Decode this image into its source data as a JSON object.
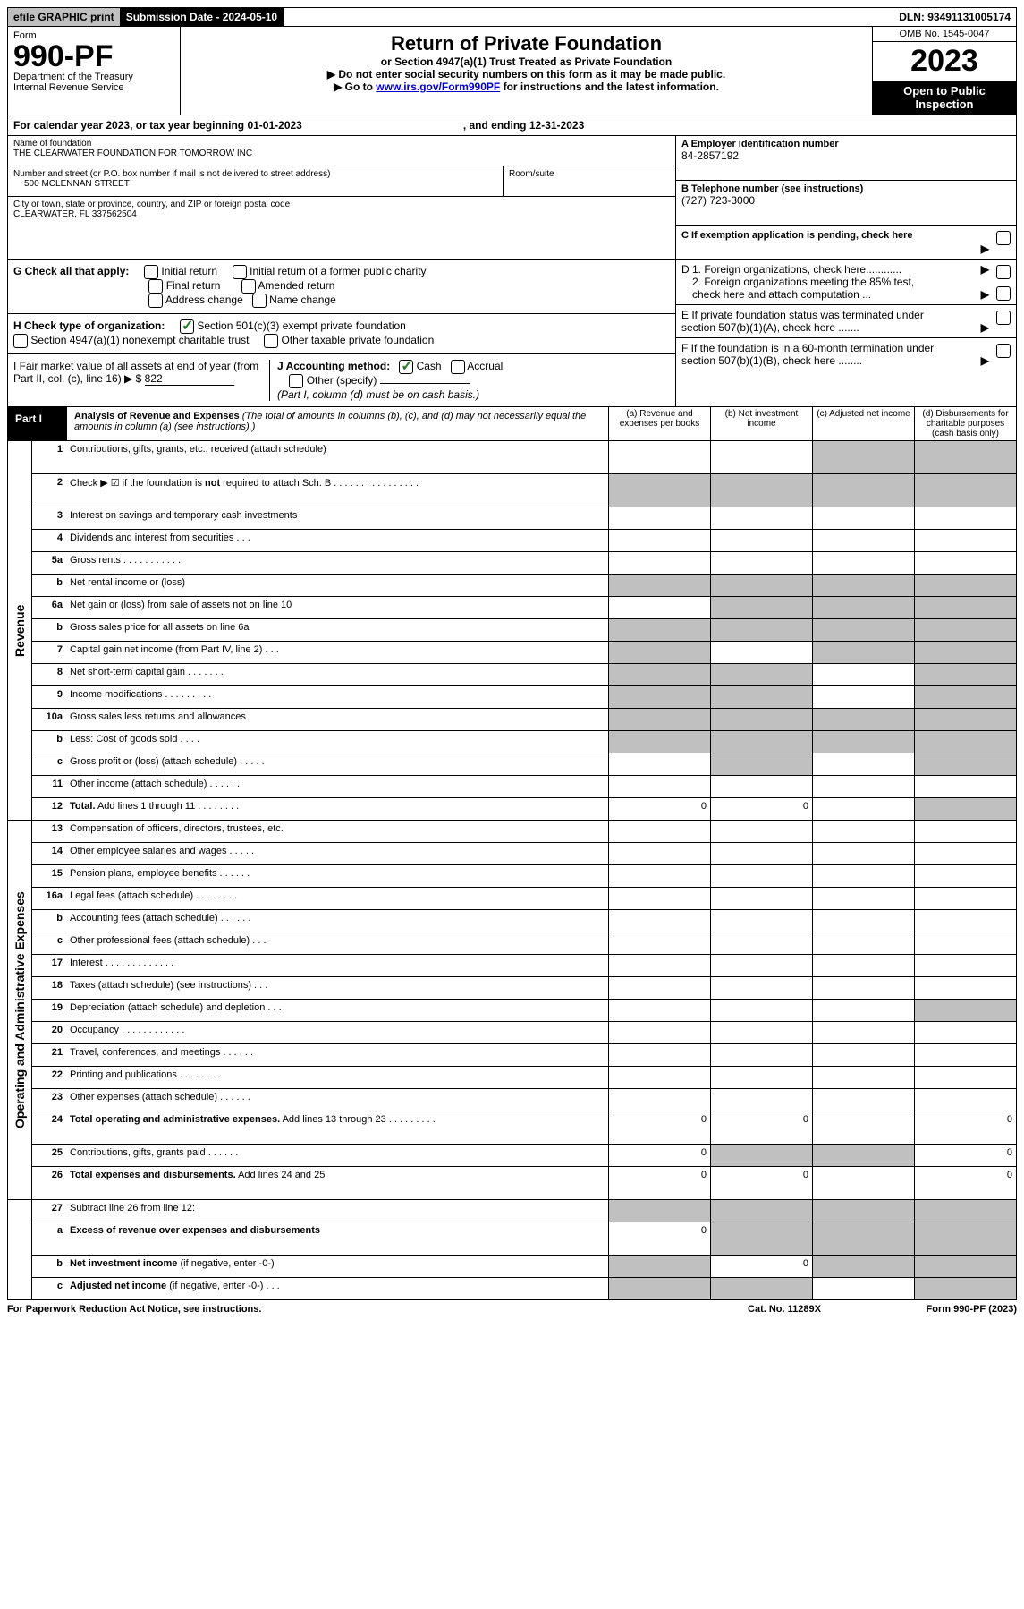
{
  "top": {
    "efile": "efile GRAPHIC print",
    "submission_label": "Submission Date - ",
    "submission_date": "2024-05-10",
    "dln_label": "DLN: ",
    "dln": "93491131005174"
  },
  "header": {
    "form_label": "Form",
    "form_no": "990-PF",
    "dept_line1": "Department of the Treasury",
    "dept_line2": "Internal Revenue Service",
    "title": "Return of Private Foundation",
    "subtitle": "or Section 4947(a)(1) Trust Treated as Private Foundation",
    "instr1": "▶ Do not enter social security numbers on this form as it may be made public.",
    "instr2_prefix": "▶ Go to ",
    "instr2_link": "www.irs.gov/Form990PF",
    "instr2_suffix": " for instructions and the latest information.",
    "omb": "OMB No. 1545-0047",
    "year": "2023",
    "inspection": "Open to Public Inspection"
  },
  "calendar": {
    "text_left": "For calendar year 2023, or tax year beginning ",
    "begin": "01-01-2023",
    "text_mid": ", and ending ",
    "end": "12-31-2023"
  },
  "address": {
    "name_label": "Name of foundation",
    "name": "THE CLEARWATER FOUNDATION FOR TOMORROW INC",
    "street_label": "Number and street (or P.O. box number if mail is not delivered to street address)",
    "street": "500 MCLENNAN STREET",
    "room_suite_label": "Room/suite",
    "city_label": "City or town, state or province, country, and ZIP or foreign postal code",
    "city": "CLEARWATER, FL  337562504",
    "ein_label": "A Employer identification number",
    "ein": "84-2857192",
    "phone_label": "B Telephone number (see instructions)",
    "phone": "(727) 723-3000",
    "pending_label": "C If exemption application is pending, check here"
  },
  "checkboxes": {
    "G_label": "G Check all that apply:",
    "initial_return": "Initial return",
    "initial_former": "Initial return of a former public charity",
    "final_return": "Final return",
    "amended_return": "Amended return",
    "address_change": "Address change",
    "name_change": "Name change",
    "H_label": "H Check type of organization:",
    "sec501": "Section 501(c)(3) exempt private foundation",
    "sec4947": "Section 4947(a)(1) nonexempt charitable trust",
    "other_taxable": "Other taxable private foundation",
    "I_label": "I Fair market value of all assets at end of year (from Part II, col. (c), line 16) ▶ $ ",
    "I_value": "822",
    "J_label": "J Accounting method:",
    "cash": "Cash",
    "accrual": "Accrual",
    "other_specify": "Other (specify)",
    "J_note": "(Part I, column (d) must be on cash basis.)",
    "D1_label": "D 1. Foreign organizations, check here............",
    "D2_label": "2. Foreign organizations meeting the 85% test, check here and attach computation ...",
    "E_label": "E  If private foundation status was terminated under section 507(b)(1)(A), check here .......",
    "F_label": "F  If the foundation is in a 60-month termination under section 507(b)(1)(B), check here ........"
  },
  "part1": {
    "label": "Part I",
    "title": "Analysis of Revenue and Expenses",
    "title_note": " (The total of amounts in columns (b), (c), and (d) may not necessarily equal the amounts in column (a) (see instructions).)",
    "col_a": "(a)   Revenue and expenses per books",
    "col_b": "(b)   Net investment income",
    "col_c": "(c)   Adjusted net income",
    "col_d": "(d)   Disbursements for charitable purposes (cash basis only)"
  },
  "sections": {
    "revenue": "Revenue",
    "operating": "Operating and Administrative Expenses"
  },
  "rows": [
    {
      "n": "1",
      "d": "Contributions, gifts, grants, etc., received (attach schedule)",
      "tall": true,
      "s": [
        "",
        "",
        "s",
        "s"
      ]
    },
    {
      "n": "2",
      "d": "Check ▶ ☑ if the foundation is <b>not</b> required to attach Sch. B   .   .   .   .   .   .   .   .   .   .   .   .   .   .   .   .",
      "tall": true,
      "s": [
        "s",
        "s",
        "s",
        "s"
      ]
    },
    {
      "n": "3",
      "d": "Interest on savings and temporary cash investments",
      "s": [
        "",
        "",
        "",
        ""
      ]
    },
    {
      "n": "4",
      "d": "Dividends and interest from securities   .   .   .",
      "s": [
        "",
        "",
        "",
        ""
      ]
    },
    {
      "n": "5a",
      "d": "Gross rents   .   .   .   .   .   .   .   .   .   .   .",
      "s": [
        "",
        "",
        "",
        ""
      ]
    },
    {
      "n": "b",
      "d": "Net rental income or (loss)",
      "s": [
        "s",
        "s",
        "s",
        "s"
      ]
    },
    {
      "n": "6a",
      "d": "Net gain or (loss) from sale of assets not on line 10",
      "s": [
        "",
        "s",
        "s",
        "s"
      ]
    },
    {
      "n": "b",
      "d": "Gross sales price for all assets on line 6a",
      "s": [
        "s",
        "s",
        "s",
        "s"
      ]
    },
    {
      "n": "7",
      "d": "Capital gain net income (from Part IV, line 2)   .   .   .",
      "s": [
        "s",
        "",
        "s",
        "s"
      ]
    },
    {
      "n": "8",
      "d": "Net short-term capital gain   .   .   .   .   .   .   .",
      "s": [
        "s",
        "s",
        "",
        "s"
      ]
    },
    {
      "n": "9",
      "d": "Income modifications   .   .   .   .   .   .   .   .   .",
      "s": [
        "s",
        "s",
        "",
        "s"
      ]
    },
    {
      "n": "10a",
      "d": "Gross sales less returns and allowances",
      "s": [
        "s",
        "s",
        "s",
        "s"
      ]
    },
    {
      "n": "b",
      "d": "Less: Cost of goods sold   .   .   .   .",
      "s": [
        "s",
        "s",
        "s",
        "s"
      ]
    },
    {
      "n": "c",
      "d": "Gross profit or (loss) (attach schedule)   .   .   .   .   .",
      "s": [
        "",
        "s",
        "",
        "s"
      ]
    },
    {
      "n": "11",
      "d": "Other income (attach schedule)   .   .   .   .   .   .",
      "s": [
        "",
        "",
        "",
        ""
      ]
    },
    {
      "n": "12",
      "d": "<b>Total.</b> Add lines 1 through 11   .   .   .   .   .   .   .   .",
      "v": [
        "0",
        "0",
        "",
        ""
      ],
      "s": [
        "",
        "",
        "",
        "s"
      ]
    }
  ],
  "expense_rows": [
    {
      "n": "13",
      "d": "Compensation of officers, directors, trustees, etc.",
      "s": [
        "",
        "",
        "",
        ""
      ]
    },
    {
      "n": "14",
      "d": "Other employee salaries and wages   .   .   .   .   .",
      "s": [
        "",
        "",
        "",
        ""
      ]
    },
    {
      "n": "15",
      "d": "Pension plans, employee benefits   .   .   .   .   .   .",
      "s": [
        "",
        "",
        "",
        ""
      ]
    },
    {
      "n": "16a",
      "d": "Legal fees (attach schedule)   .   .   .   .   .   .   .   .",
      "s": [
        "",
        "",
        "",
        ""
      ]
    },
    {
      "n": "b",
      "d": "Accounting fees (attach schedule)   .   .   .   .   .   .",
      "s": [
        "",
        "",
        "",
        ""
      ]
    },
    {
      "n": "c",
      "d": "Other professional fees (attach schedule)    .   .   .",
      "s": [
        "",
        "",
        "",
        ""
      ]
    },
    {
      "n": "17",
      "d": "Interest   .   .   .   .   .   .   .   .   .   .   .   .   .",
      "s": [
        "",
        "",
        "",
        ""
      ]
    },
    {
      "n": "18",
      "d": "Taxes (attach schedule) (see instructions)    .   .   .",
      "s": [
        "",
        "",
        "",
        ""
      ]
    },
    {
      "n": "19",
      "d": "Depreciation (attach schedule) and depletion    .   .   .",
      "s": [
        "",
        "",
        "",
        "s"
      ]
    },
    {
      "n": "20",
      "d": "Occupancy   .   .   .   .   .   .   .   .   .   .   .   .",
      "s": [
        "",
        "",
        "",
        ""
      ]
    },
    {
      "n": "21",
      "d": "Travel, conferences, and meetings   .   .   .   .   .   .",
      "s": [
        "",
        "",
        "",
        ""
      ]
    },
    {
      "n": "22",
      "d": "Printing and publications   .   .   .   .   .   .   .   .",
      "s": [
        "",
        "",
        "",
        ""
      ]
    },
    {
      "n": "23",
      "d": "Other expenses (attach schedule)   .   .   .   .   .   .",
      "s": [
        "",
        "",
        "",
        ""
      ]
    },
    {
      "n": "24",
      "d": "<b>Total operating and administrative expenses.</b> Add lines 13 through 23   .   .   .   .   .   .   .   .   .",
      "tall": true,
      "v": [
        "0",
        "0",
        "",
        "0"
      ],
      "s": [
        "",
        "",
        "",
        ""
      ]
    },
    {
      "n": "25",
      "d": "Contributions, gifts, grants paid    .   .   .   .   .   .",
      "v": [
        "0",
        "",
        "",
        "0"
      ],
      "s": [
        "",
        "s",
        "s",
        ""
      ]
    },
    {
      "n": "26",
      "d": "<b>Total expenses and disbursements.</b> Add lines 24 and 25",
      "tall": true,
      "v": [
        "0",
        "0",
        "",
        "0"
      ],
      "s": [
        "",
        "",
        "",
        ""
      ]
    }
  ],
  "final_rows": [
    {
      "n": "27",
      "d": "Subtract line 26 from line 12:",
      "s": [
        "s",
        "s",
        "s",
        "s"
      ]
    },
    {
      "n": "a",
      "d": "<b>Excess of revenue over expenses and disbursements</b>",
      "tall": true,
      "v": [
        "0",
        "",
        "",
        ""
      ],
      "s": [
        "",
        "s",
        "s",
        "s"
      ]
    },
    {
      "n": "b",
      "d": "<b>Net investment income</b> (if negative, enter -0-)",
      "v": [
        "",
        "0",
        "",
        ""
      ],
      "s": [
        "s",
        "",
        "s",
        "s"
      ]
    },
    {
      "n": "c",
      "d": "<b>Adjusted net income</b> (if negative, enter -0-)   .   .   .",
      "s": [
        "s",
        "s",
        "",
        "s"
      ]
    }
  ],
  "footer": {
    "left": "For Paperwork Reduction Act Notice, see instructions.",
    "mid": "Cat. No. 11289X",
    "right": "Form 990-PF (2023)"
  }
}
